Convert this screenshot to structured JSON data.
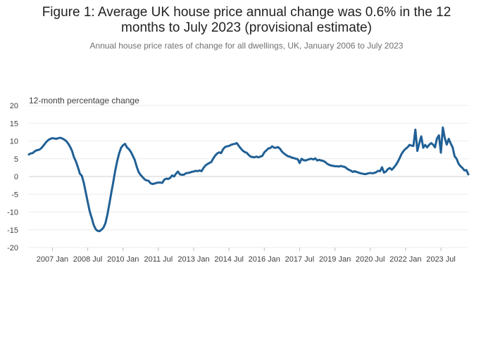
{
  "chart_data": {
    "type": "line",
    "title_line1": "Figure 1: Average UK house price annual change was 0.6% in the 12",
    "title_line2": "months to July 2023 (provisional estimate)",
    "subtitle": "Annual house price rates of change for all dwellings, UK, January 2006 to July 2023",
    "ylabel": "12-month percentage change",
    "xlabel": "",
    "ylim": [
      -20,
      20
    ],
    "y_ticks": [
      20,
      15,
      10,
      5,
      0,
      -5,
      -10,
      -15,
      -20
    ],
    "x_ticks": [
      "2007 Jan",
      "2008 Jul",
      "2010 Jan",
      "2011 Jul",
      "2013 Jan",
      "2014 Jul",
      "2016 Jan",
      "2017 Jul",
      "2019 Jan",
      "2020 Jul",
      "2022 Jan",
      "2023 Jul"
    ],
    "grid": true,
    "legend": "none",
    "series_color": "#206095",
    "x_start": "2006 Jan",
    "x_end": "2023 Jul",
    "series": [
      {
        "values": [
          6.2,
          6.5,
          6.6,
          7.1,
          7.4,
          7.5,
          7.8,
          8.4,
          9.1,
          9.8,
          10.3,
          10.6,
          10.8,
          10.7,
          10.6,
          10.8,
          10.9,
          10.7,
          10.4,
          10.0,
          9.3,
          8.4,
          7.2,
          5.4,
          4.2,
          2.6,
          0.8,
          0.2,
          -1.8,
          -4.5,
          -7.2,
          -9.8,
          -11.6,
          -13.6,
          -14.8,
          -15.3,
          -15.4,
          -15.0,
          -14.4,
          -13.2,
          -10.8,
          -7.8,
          -4.6,
          -1.6,
          1.6,
          4.3,
          6.5,
          8.1,
          8.8,
          9.2,
          8.2,
          7.7,
          6.9,
          5.8,
          4.6,
          2.7,
          1.2,
          0.4,
          -0.2,
          -0.8,
          -1.1,
          -1.2,
          -1.9,
          -2.1,
          -2.0,
          -1.8,
          -1.7,
          -1.7,
          -1.8,
          -0.9,
          -0.6,
          -0.7,
          -0.4,
          0.3,
          0.0,
          0.8,
          1.4,
          0.6,
          0.5,
          0.5,
          0.9,
          1.0,
          1.1,
          1.3,
          1.4,
          1.6,
          1.5,
          1.7,
          1.5,
          2.4,
          3.1,
          3.5,
          3.8,
          4.1,
          5.1,
          5.9,
          6.5,
          6.8,
          6.6,
          7.7,
          8.3,
          8.5,
          8.6,
          8.9,
          9.1,
          9.2,
          9.4,
          8.6,
          7.9,
          7.3,
          6.9,
          6.7,
          6.1,
          5.6,
          5.5,
          5.4,
          5.6,
          5.4,
          5.6,
          5.8,
          6.8,
          7.3,
          7.9,
          8.0,
          8.5,
          8.1,
          8.1,
          8.3,
          7.8,
          7.0,
          6.5,
          6.1,
          5.7,
          5.6,
          5.3,
          5.2,
          5.0,
          4.9,
          3.8,
          5.0,
          4.6,
          4.5,
          4.7,
          4.9,
          5.0,
          4.8,
          5.1,
          4.5,
          4.7,
          4.5,
          4.4,
          4.1,
          3.6,
          3.3,
          3.1,
          3.0,
          2.9,
          2.9,
          2.8,
          3.0,
          2.8,
          2.7,
          2.3,
          1.9,
          1.7,
          1.3,
          1.5,
          1.3,
          1.1,
          0.9,
          0.8,
          0.7,
          0.7,
          0.9,
          1.0,
          0.9,
          1.0,
          1.2,
          1.6,
          1.5,
          2.6,
          1.1,
          1.4,
          2.1,
          2.4,
          1.9,
          2.5,
          3.2,
          4.1,
          5.2,
          6.4,
          7.2,
          7.8,
          8.2,
          8.9,
          8.7,
          8.6,
          13.2,
          7.2,
          9.4,
          11.3,
          8.1,
          8.9,
          8.2,
          8.9,
          9.4,
          9.0,
          8.2,
          10.7,
          11.6,
          6.7,
          13.8,
          10.8,
          9.0,
          10.6,
          9.3,
          8.2,
          5.7,
          5.0,
          3.6,
          2.9,
          2.4,
          1.7,
          1.8,
          0.6
        ]
      }
    ]
  }
}
